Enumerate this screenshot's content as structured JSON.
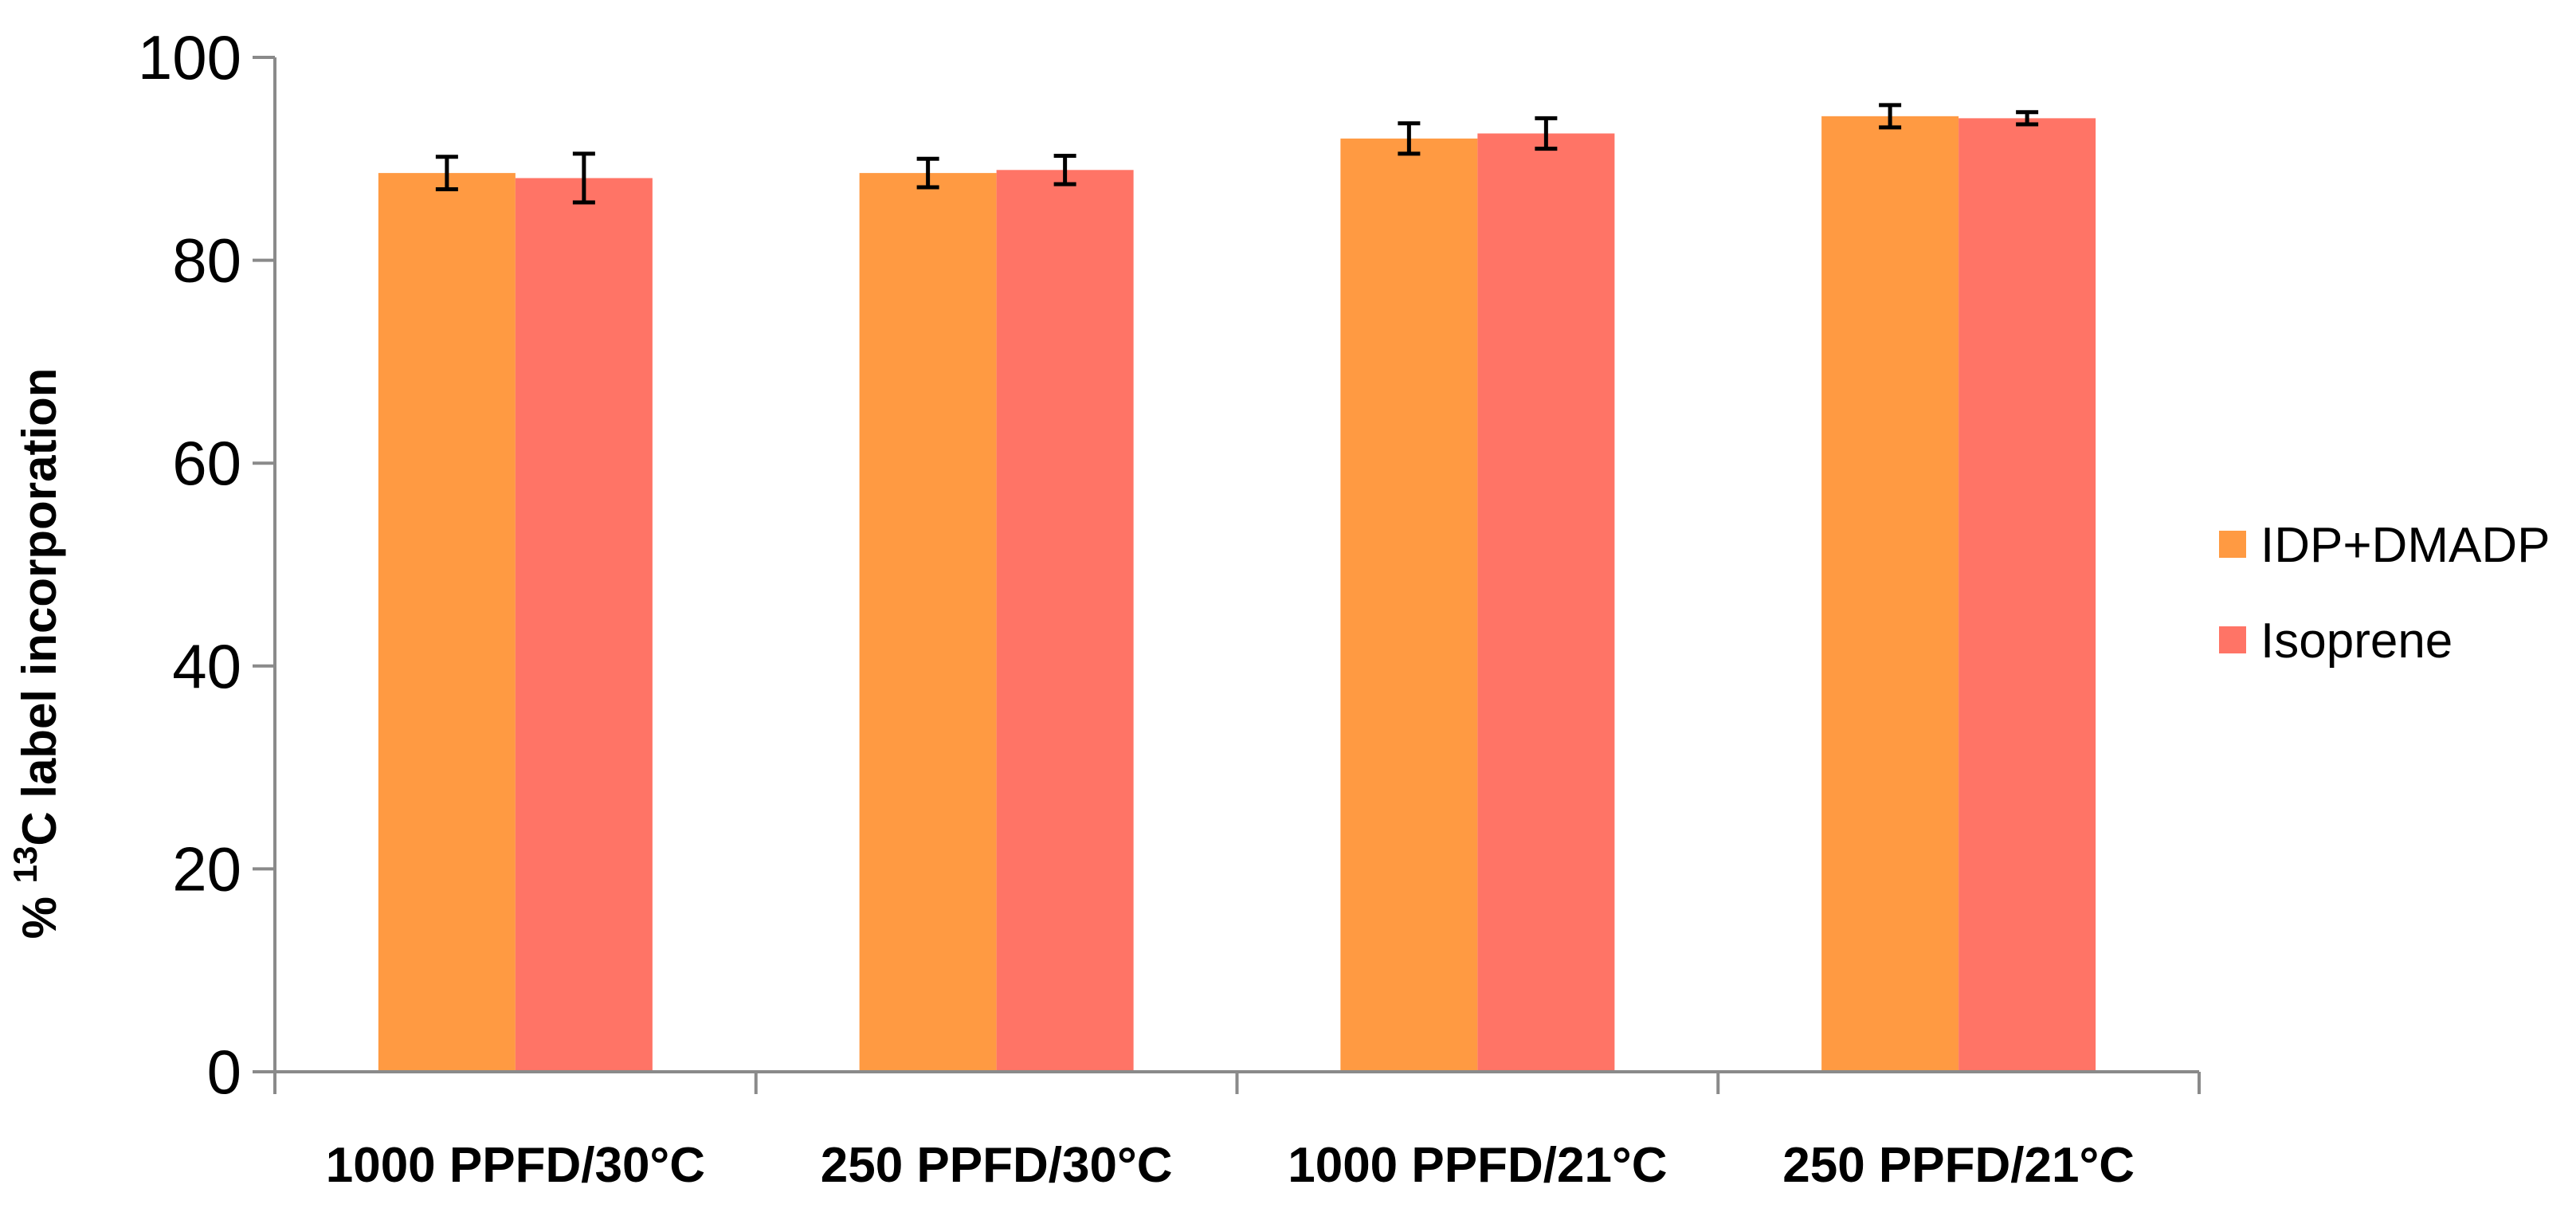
{
  "chart_data": {
    "type": "bar",
    "title": "",
    "xlabel": "",
    "ylabel": {
      "prefix": "% ",
      "superscript": "13",
      "suffix": "C  label incorporation"
    },
    "ylim": [
      0,
      100
    ],
    "yticks": [
      0,
      20,
      40,
      60,
      80,
      100
    ],
    "ytick_labels": [
      "0",
      "20",
      "40",
      "60",
      "80",
      "100"
    ],
    "grid": false,
    "legend_position": "right",
    "categories": [
      "1000 PPFD/30°C",
      "250 PPFD/30°C",
      "1000 PPFD/21°C",
      "250 PPFD/21°C"
    ],
    "series": [
      {
        "name": "IDP+DMADP",
        "color": "#FF9A42",
        "values": [
          88.6,
          88.6,
          92.0,
          94.2
        ],
        "errors": [
          1.6,
          1.4,
          1.5,
          1.1
        ]
      },
      {
        "name": "Isoprene",
        "color": "#FF7466",
        "values": [
          88.1,
          88.9,
          92.5,
          94.0
        ],
        "errors": [
          2.4,
          1.4,
          1.5,
          0.6
        ]
      }
    ]
  }
}
